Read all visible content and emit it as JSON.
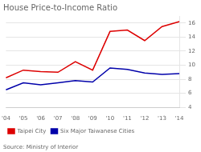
{
  "chart_data": {
    "type": "line",
    "title": "House Price-to-Income Ratio",
    "annotations": [
      "Source: Ministry of Interior"
    ],
    "categories": [
      "'04",
      "'05",
      "'06",
      "'07",
      "'08",
      "'09",
      "'10",
      "'11",
      "'12",
      "'13",
      "'14"
    ],
    "series": [
      {
        "name": "Taipei City",
        "color": "#dd0000",
        "values": [
          8.2,
          9.3,
          9.1,
          9.0,
          10.5,
          9.3,
          14.8,
          15.0,
          13.5,
          15.5,
          16.2
        ]
      },
      {
        "name": "Six Major Taiwanese Cities",
        "color": "#0000aa",
        "values": [
          6.5,
          7.5,
          7.2,
          7.5,
          7.8,
          7.6,
          9.6,
          9.4,
          8.9,
          8.7,
          8.8
        ]
      }
    ],
    "ylim": [
      4,
      17
    ],
    "yticks": [
      4,
      6,
      8,
      10,
      12,
      14,
      16
    ],
    "grid": "y",
    "legend": "lower left"
  }
}
